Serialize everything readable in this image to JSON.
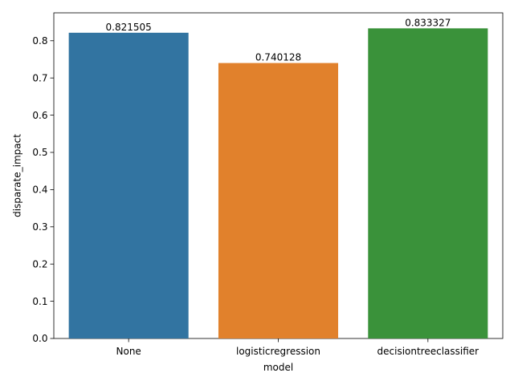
{
  "chart_data": {
    "type": "bar",
    "categories": [
      "None",
      "logisticregression",
      "decisiontreeclassifier"
    ],
    "values": [
      0.821505,
      0.740128,
      0.833327
    ],
    "value_labels": [
      "0.821505",
      "0.740128",
      "0.833327"
    ],
    "colors": [
      "#3274a1",
      "#e1812c",
      "#3a923a"
    ],
    "xlabel": "model",
    "ylabel": "disparate_impact",
    "ylim": [
      0,
      0.875
    ],
    "yticks": [
      0.0,
      0.1,
      0.2,
      0.3,
      0.4,
      0.5,
      0.6,
      0.7,
      0.8
    ],
    "ytick_labels": [
      "0.0",
      "0.1",
      "0.2",
      "0.3",
      "0.4",
      "0.5",
      "0.6",
      "0.7",
      "0.8"
    ],
    "grid": false,
    "legend": false
  }
}
